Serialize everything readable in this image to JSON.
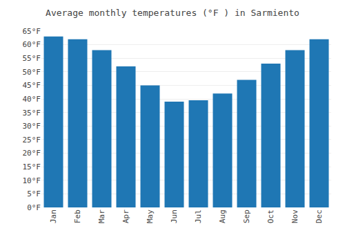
{
  "chart_data": {
    "type": "bar",
    "title": "Average monthly temperatures (°F ) in Sarmiento",
    "categories": [
      "Jan",
      "Feb",
      "Mar",
      "Apr",
      "May",
      "Jun",
      "Jul",
      "Aug",
      "Sep",
      "Oct",
      "Nov",
      "Dec"
    ],
    "values": [
      63,
      62,
      58,
      52,
      45,
      39,
      39.5,
      42,
      47,
      53,
      58,
      62
    ],
    "ylim": [
      0,
      65
    ],
    "yticks": [
      {
        "value": 0,
        "label": "0°F"
      },
      {
        "value": 5,
        "label": "5°F"
      },
      {
        "value": 10,
        "label": "10°F"
      },
      {
        "value": 15,
        "label": "15°F"
      },
      {
        "value": 20,
        "label": "20°F"
      },
      {
        "value": 25,
        "label": "25°F"
      },
      {
        "value": 30,
        "label": "30°F"
      },
      {
        "value": 35,
        "label": "35°F"
      },
      {
        "value": 40,
        "label": "40°F"
      },
      {
        "value": 45,
        "label": "45°F"
      },
      {
        "value": 50,
        "label": "50°F"
      },
      {
        "value": 55,
        "label": "55°F"
      },
      {
        "value": 60,
        "label": "60°F"
      },
      {
        "value": 65,
        "label": "65°F"
      }
    ],
    "grid": true
  }
}
